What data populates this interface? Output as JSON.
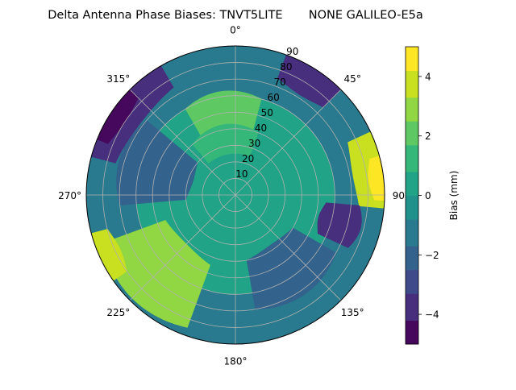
{
  "chart_data": {
    "type": "heatmap",
    "subtype": "polar-contour",
    "title": "Delta Antenna Phase Biases: TNVT5LITE       NONE GALILEO-E5a",
    "azimuth_ticks": [
      {
        "deg": 0,
        "label": "0°"
      },
      {
        "deg": 45,
        "label": "45°"
      },
      {
        "deg": 90,
        "label": "90°"
      },
      {
        "deg": 135,
        "label": "135°"
      },
      {
        "deg": 180,
        "label": "180°"
      },
      {
        "deg": 225,
        "label": "225°"
      },
      {
        "deg": 270,
        "label": "270°"
      },
      {
        "deg": 315,
        "label": "315°"
      }
    ],
    "radial_ticks": [
      10,
      20,
      30,
      40,
      50,
      60,
      70,
      80,
      90
    ],
    "radial_range": [
      0,
      90
    ],
    "grid": true,
    "colorbar": {
      "label": "Bias (mm)",
      "range": [
        -5,
        5
      ],
      "levels": [
        -5,
        -4.2,
        -3.3,
        -2.5,
        -1.7,
        -0.8,
        0,
        0.8,
        1.7,
        2.5,
        3.3,
        4.2,
        5
      ],
      "ticks": [
        -4,
        -2,
        0,
        2,
        4
      ],
      "colors": [
        "#46085c",
        "#472f7d",
        "#3e4a89",
        "#33638d",
        "#297a8e",
        "#21918c",
        "#20a386",
        "#35b779",
        "#5ec962",
        "#90d743",
        "#c8e020",
        "#fde725"
      ]
    },
    "contour_regions": [
      {
        "id": "base",
        "bias": 0.5
      },
      {
        "id": "outer-ring",
        "bias": -1.5,
        "r": [
          60,
          90
        ],
        "az": [
          0,
          360
        ]
      },
      {
        "id": "north-cap",
        "bias": 2.2,
        "r": [
          35,
          60
        ],
        "az": [
          330,
          375
        ]
      },
      {
        "id": "north-inner",
        "bias": 0.8,
        "r": [
          20,
          40
        ],
        "az": [
          320,
          380
        ]
      },
      {
        "id": "center",
        "bias": 0.2,
        "r": [
          0,
          25
        ],
        "az": [
          0,
          360
        ]
      },
      {
        "id": "nw-dark",
        "bias": -3.8,
        "r": [
          75,
          90
        ],
        "az": [
          285,
          330
        ]
      },
      {
        "id": "nw-darkest",
        "bias": -4.6,
        "r": [
          83,
          90
        ],
        "az": [
          292,
          315
        ]
      },
      {
        "id": "ne-dark",
        "bias": -3.6,
        "r": [
          75,
          90
        ],
        "az": [
          20,
          45
        ]
      },
      {
        "id": "east-warm",
        "bias": 3.3,
        "r": [
          75,
          90
        ],
        "az": [
          65,
          95
        ]
      },
      {
        "id": "east-hot",
        "bias": 4.4,
        "r": [
          84,
          90
        ],
        "az": [
          75,
          92
        ]
      },
      {
        "id": "east-dark",
        "bias": -3.4,
        "r": [
          55,
          75
        ],
        "az": [
          95,
          115
        ]
      },
      {
        "id": "south-warm",
        "bias": 2.8,
        "r": [
          45,
          85
        ],
        "az": [
          200,
          250
        ]
      },
      {
        "id": "sw-bright",
        "bias": 3.6,
        "r": [
          80,
          90
        ],
        "az": [
          235,
          255
        ]
      },
      {
        "id": "se-dark",
        "bias": -2.4,
        "r": [
          40,
          70
        ],
        "az": [
          120,
          170
        ]
      },
      {
        "id": "west-dark",
        "bias": -2.3,
        "r": [
          30,
          70
        ],
        "az": [
          265,
          310
        ]
      }
    ]
  }
}
